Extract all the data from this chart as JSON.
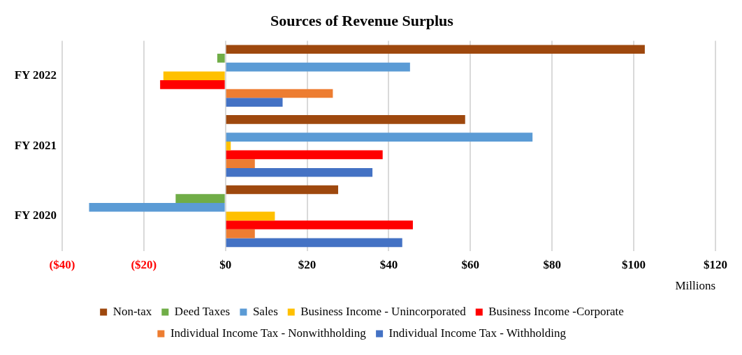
{
  "chart_data": {
    "type": "bar",
    "orientation": "horizontal",
    "title": "Sources of Revenue Surplus",
    "xlabel": "Millions",
    "categories": [
      "FY 2022",
      "FY 2021",
      "FY 2020"
    ],
    "series": [
      {
        "name": "Non-tax",
        "color": "#9e480e",
        "values": [
          102.7,
          58.7,
          27.6
        ]
      },
      {
        "name": "Deed Taxes",
        "color": "#70ad47",
        "values": [
          -2,
          0,
          -12.2
        ]
      },
      {
        "name": "Sales",
        "color": "#5b9bd5",
        "values": [
          45.2,
          75.2,
          -33.4
        ]
      },
      {
        "name": "Business Income - Unincorporated",
        "color": "#ffc000",
        "values": [
          -15.2,
          1.3,
          12.1
        ]
      },
      {
        "name": "Business Income -Corporate",
        "color": "#ff0000",
        "values": [
          -16,
          38.5,
          45.9
        ]
      },
      {
        "name": "Individual Income Tax - Nonwithholding",
        "color": "#ed7d31",
        "values": [
          26.3,
          7.2,
          7.2
        ]
      },
      {
        "name": "Individual Income Tax - Withholding",
        "color": "#4472c4",
        "values": [
          14,
          36,
          43.3
        ]
      }
    ],
    "xlim": [
      -40,
      120
    ],
    "xticks": [
      {
        "value": -40,
        "label": "($40)"
      },
      {
        "value": -20,
        "label": "($20)"
      },
      {
        "value": 0,
        "label": "$0"
      },
      {
        "value": 20,
        "label": "$20"
      },
      {
        "value": 40,
        "label": "$40"
      },
      {
        "value": 60,
        "label": "$60"
      },
      {
        "value": 80,
        "label": "$80"
      },
      {
        "value": 100,
        "label": "$100"
      },
      {
        "value": 120,
        "label": "$120"
      }
    ],
    "grid": "x",
    "legend": "bottom"
  }
}
